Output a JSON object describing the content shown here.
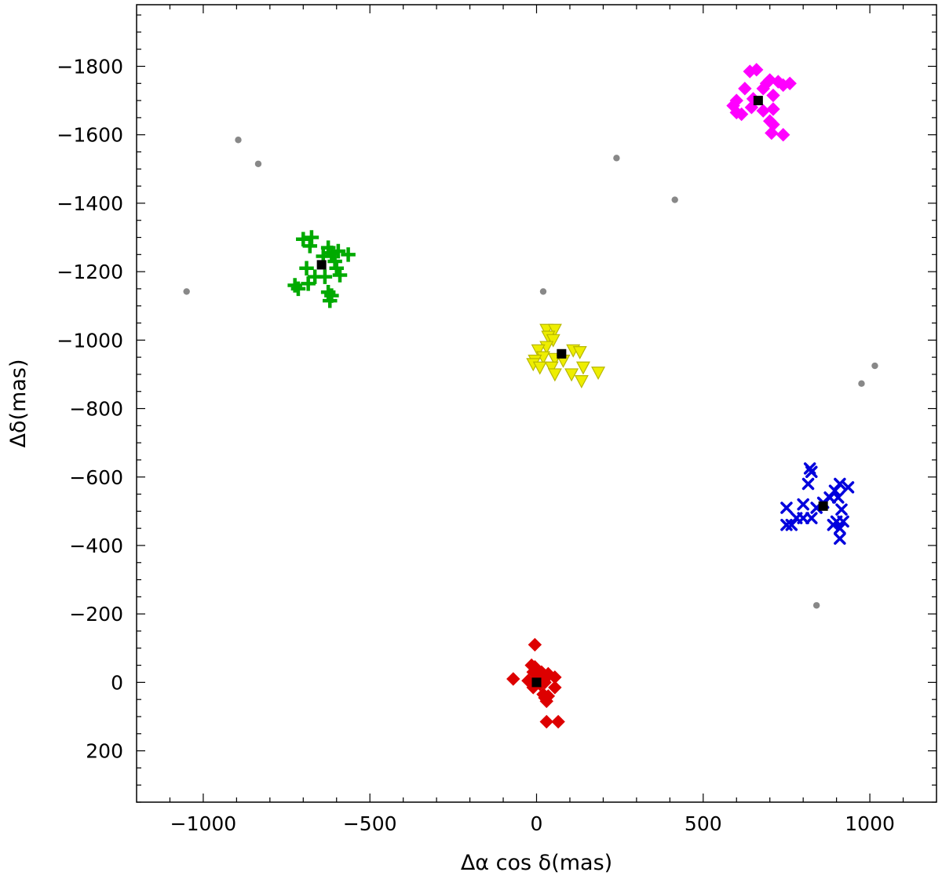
{
  "chart_data": {
    "type": "scatter",
    "title": "",
    "xlabel": "Δα cos δ(mas)",
    "ylabel": "Δδ(mas)",
    "xlim": [
      -1200,
      1200
    ],
    "ylim": [
      350,
      -1980
    ],
    "y_inverted": true,
    "grid": false,
    "legend": "none",
    "xticks": [
      -1000,
      -500,
      0,
      500,
      1000
    ],
    "xtick_labels": [
      "−1000",
      "−500",
      "0",
      "500",
      "1000"
    ],
    "yticks": [
      -1800,
      -1600,
      -1400,
      -1200,
      -1000,
      -800,
      -600,
      -400,
      -200,
      0,
      200
    ],
    "ytick_labels": [
      "−1800",
      "−1600",
      "−1400",
      "−1200",
      "−1000",
      "−800",
      "−600",
      "−400",
      "−200",
      "0",
      "200"
    ],
    "series": [
      {
        "marker": "diamond",
        "color": "#dd0000",
        "points": [
          [
            -5,
            -110
          ],
          [
            -70,
            -10
          ],
          [
            -15,
            -50
          ],
          [
            -5,
            -45
          ],
          [
            -10,
            -30
          ],
          [
            5,
            -25
          ],
          [
            15,
            -30
          ],
          [
            -25,
            -5
          ],
          [
            -5,
            -5
          ],
          [
            10,
            5
          ],
          [
            -10,
            15
          ],
          [
            25,
            0
          ],
          [
            55,
            -15
          ],
          [
            55,
            15
          ],
          [
            20,
            35
          ],
          [
            35,
            40
          ],
          [
            30,
            55
          ],
          [
            25,
            45
          ],
          [
            35,
            -25
          ],
          [
            30,
            -15
          ],
          [
            5,
            -20
          ],
          [
            30,
            115
          ],
          [
            65,
            115
          ]
        ]
      },
      {
        "marker": "x",
        "color": "#0000dd",
        "points": [
          [
            820,
            -625
          ],
          [
            825,
            -615
          ],
          [
            815,
            -580
          ],
          [
            910,
            -580
          ],
          [
            935,
            -570
          ],
          [
            895,
            -560
          ],
          [
            880,
            -540
          ],
          [
            905,
            -540
          ],
          [
            915,
            -505
          ],
          [
            750,
            -510
          ],
          [
            800,
            -520
          ],
          [
            780,
            -480
          ],
          [
            800,
            -480
          ],
          [
            825,
            -480
          ],
          [
            900,
            -470
          ],
          [
            920,
            -470
          ],
          [
            890,
            -460
          ],
          [
            910,
            -450
          ],
          [
            750,
            -460
          ],
          [
            765,
            -460
          ],
          [
            910,
            -420
          ],
          [
            840,
            -510
          ],
          [
            860,
            -525
          ]
        ]
      },
      {
        "marker": "plus",
        "color": "#00aa00",
        "points": [
          [
            -700,
            -1295
          ],
          [
            -675,
            -1300
          ],
          [
            -680,
            -1275
          ],
          [
            -625,
            -1270
          ],
          [
            -615,
            -1255
          ],
          [
            -640,
            -1245
          ],
          [
            -595,
            -1260
          ],
          [
            -565,
            -1250
          ],
          [
            -605,
            -1230
          ],
          [
            -690,
            -1210
          ],
          [
            -665,
            -1185
          ],
          [
            -635,
            -1185
          ],
          [
            -600,
            -1210
          ],
          [
            -590,
            -1190
          ],
          [
            -725,
            -1160
          ],
          [
            -715,
            -1150
          ],
          [
            -685,
            -1165
          ],
          [
            -625,
            -1140
          ],
          [
            -615,
            -1130
          ],
          [
            -620,
            -1115
          ]
        ]
      },
      {
        "marker": "triangle-down",
        "color": "#eeee00",
        "points": [
          [
            30,
            -1030
          ],
          [
            55,
            -1030
          ],
          [
            35,
            -1010
          ],
          [
            50,
            -1000
          ],
          [
            30,
            -980
          ],
          [
            5,
            -970
          ],
          [
            110,
            -970
          ],
          [
            130,
            -965
          ],
          [
            20,
            -950
          ],
          [
            -5,
            -940
          ],
          [
            55,
            -945
          ],
          [
            80,
            -940
          ],
          [
            -10,
            -930
          ],
          [
            10,
            -920
          ],
          [
            45,
            -920
          ],
          [
            140,
            -920
          ],
          [
            55,
            -900
          ],
          [
            105,
            -900
          ],
          [
            185,
            -905
          ],
          [
            135,
            -880
          ]
        ]
      },
      {
        "marker": "diamond",
        "color": "#ff00ff",
        "points": [
          [
            640,
            -1785
          ],
          [
            660,
            -1790
          ],
          [
            700,
            -1760
          ],
          [
            725,
            -1755
          ],
          [
            740,
            -1745
          ],
          [
            690,
            -1750
          ],
          [
            680,
            -1735
          ],
          [
            625,
            -1735
          ],
          [
            760,
            -1750
          ],
          [
            600,
            -1700
          ],
          [
            590,
            -1685
          ],
          [
            650,
            -1705
          ],
          [
            710,
            -1715
          ],
          [
            645,
            -1680
          ],
          [
            680,
            -1670
          ],
          [
            710,
            -1675
          ],
          [
            600,
            -1665
          ],
          [
            615,
            -1660
          ],
          [
            700,
            -1640
          ],
          [
            710,
            -1630
          ],
          [
            705,
            -1605
          ],
          [
            740,
            -1600
          ]
        ]
      },
      {
        "marker": "circle",
        "color": "#888888",
        "points": [
          [
            -1050,
            -1142
          ],
          [
            -895,
            -1585
          ],
          [
            -835,
            -1515
          ],
          [
            20,
            -1142
          ],
          [
            240,
            -1532
          ],
          [
            415,
            -1410
          ],
          [
            975,
            -873
          ],
          [
            1015,
            -925
          ],
          [
            840,
            -225
          ]
        ]
      },
      {
        "marker": "square",
        "color": "#000000",
        "points": [
          [
            0,
            0
          ],
          [
            860,
            -515
          ],
          [
            -645,
            -1220
          ],
          [
            75,
            -960
          ],
          [
            665,
            -1700
          ]
        ]
      }
    ]
  }
}
